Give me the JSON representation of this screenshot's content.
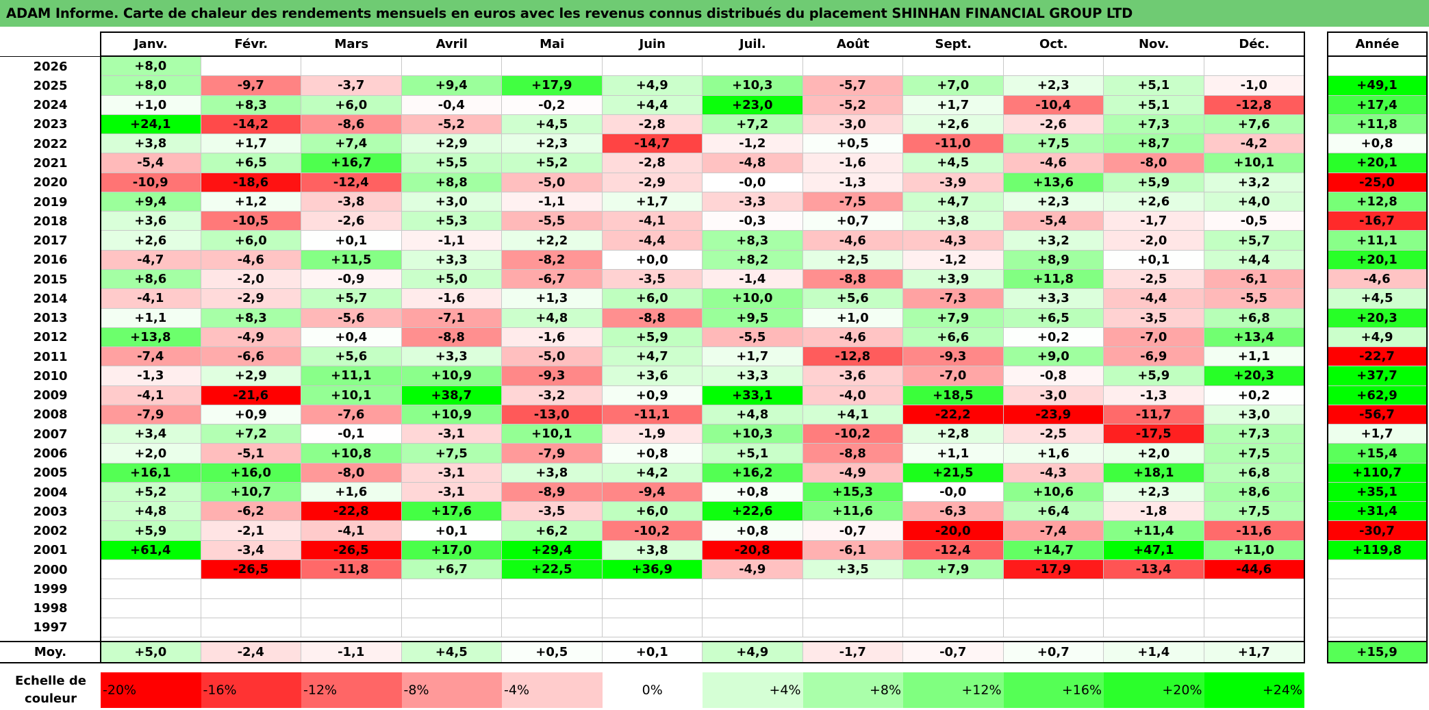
{
  "title": "ADAM Informe. Carte de chaleur des rendements mensuels en euros avec les revenus connus distribués du placement SHINHAN FINANCIAL GROUP LTD",
  "year_header": "",
  "annual_header": "Année",
  "average_label": "Moy.",
  "scale_label": "Echelle de couleur",
  "colors": {
    "positive": "#00ff00",
    "negative": "#ff0000",
    "neutral": "#ffffff",
    "title_bar": "#6fcb73"
  },
  "chart_data": {
    "type": "heatmap",
    "months": [
      "Janv.",
      "Févr.",
      "Mars",
      "Avril",
      "Mai",
      "Juin",
      "Juil.",
      "Août",
      "Sept.",
      "Oct.",
      "Nov.",
      "Déc."
    ],
    "rows": [
      {
        "year": "2026",
        "values": [
          "+8,0",
          "",
          "",
          "",
          "",
          "",
          "",
          "",
          "",
          "",
          "",
          ""
        ],
        "annual": ""
      },
      {
        "year": "2025",
        "values": [
          "+8,0",
          "-9,7",
          "-3,7",
          "+9,4",
          "+17,9",
          "+4,9",
          "+10,3",
          "-5,7",
          "+7,0",
          "+2,3",
          "+5,1",
          "-1,0"
        ],
        "annual": "+49,1"
      },
      {
        "year": "2024",
        "values": [
          "+1,0",
          "+8,3",
          "+6,0",
          "-0,4",
          "-0,2",
          "+4,4",
          "+23,0",
          "-5,2",
          "+1,7",
          "-10,4",
          "+5,1",
          "-12,8"
        ],
        "annual": "+17,4"
      },
      {
        "year": "2023",
        "values": [
          "+24,1",
          "-14,2",
          "-8,6",
          "-5,2",
          "+4,5",
          "-2,8",
          "+7,2",
          "-3,0",
          "+2,6",
          "-2,6",
          "+7,3",
          "+7,6"
        ],
        "annual": "+11,8"
      },
      {
        "year": "2022",
        "values": [
          "+3,8",
          "+1,7",
          "+7,4",
          "+2,9",
          "+2,3",
          "-14,7",
          "-1,2",
          "+0,5",
          "-11,0",
          "+7,5",
          "+8,7",
          "-4,2"
        ],
        "annual": "+0,8"
      },
      {
        "year": "2021",
        "values": [
          "-5,4",
          "+6,5",
          "+16,7",
          "+5,5",
          "+5,2",
          "-2,8",
          "-4,8",
          "-1,6",
          "+4,5",
          "-4,6",
          "-8,0",
          "+10,1"
        ],
        "annual": "+20,1"
      },
      {
        "year": "2020",
        "values": [
          "-10,9",
          "-18,6",
          "-12,4",
          "+8,8",
          "-5,0",
          "-2,9",
          "-0,0",
          "-1,3",
          "-3,9",
          "+13,6",
          "+5,9",
          "+3,2"
        ],
        "annual": "-25,0"
      },
      {
        "year": "2019",
        "values": [
          "+9,4",
          "+1,2",
          "-3,8",
          "+3,0",
          "-1,1",
          "+1,7",
          "-3,3",
          "-7,5",
          "+4,7",
          "+2,3",
          "+2,6",
          "+4,0"
        ],
        "annual": "+12,8"
      },
      {
        "year": "2018",
        "values": [
          "+3,6",
          "-10,5",
          "-2,6",
          "+5,3",
          "-5,5",
          "-4,1",
          "-0,3",
          "+0,7",
          "+3,8",
          "-5,4",
          "-1,7",
          "-0,5"
        ],
        "annual": "-16,7"
      },
      {
        "year": "2017",
        "values": [
          "+2,6",
          "+6,0",
          "+0,1",
          "-1,1",
          "+2,2",
          "-4,4",
          "+8,3",
          "-4,6",
          "-4,3",
          "+3,2",
          "-2,0",
          "+5,7"
        ],
        "annual": "+11,1"
      },
      {
        "year": "2016",
        "values": [
          "-4,7",
          "-4,6",
          "+11,5",
          "+3,3",
          "-8,2",
          "+0,0",
          "+8,2",
          "+2,5",
          "-1,2",
          "+8,9",
          "+0,1",
          "+4,4"
        ],
        "annual": "+20,1"
      },
      {
        "year": "2015",
        "values": [
          "+8,6",
          "-2,0",
          "-0,9",
          "+5,0",
          "-6,7",
          "-3,5",
          "-1,4",
          "-8,8",
          "+3,9",
          "+11,8",
          "-2,5",
          "-6,1"
        ],
        "annual": "-4,6"
      },
      {
        "year": "2014",
        "values": [
          "-4,1",
          "-2,9",
          "+5,7",
          "-1,6",
          "+1,3",
          "+6,0",
          "+10,0",
          "+5,6",
          "-7,3",
          "+3,3",
          "-4,4",
          "-5,5"
        ],
        "annual": "+4,5"
      },
      {
        "year": "2013",
        "values": [
          "+1,1",
          "+8,3",
          "-5,6",
          "-7,1",
          "+4,8",
          "-8,8",
          "+9,5",
          "+1,0",
          "+7,9",
          "+6,5",
          "-3,5",
          "+6,8"
        ],
        "annual": "+20,3"
      },
      {
        "year": "2012",
        "values": [
          "+13,8",
          "-4,9",
          "+0,4",
          "-8,8",
          "-1,6",
          "+5,9",
          "-5,5",
          "-4,6",
          "+6,6",
          "+0,2",
          "-7,0",
          "+13,4"
        ],
        "annual": "+4,9"
      },
      {
        "year": "2011",
        "values": [
          "-7,4",
          "-6,6",
          "+5,6",
          "+3,3",
          "-5,0",
          "+4,7",
          "+1,7",
          "-12,8",
          "-9,3",
          "+9,0",
          "-6,9",
          "+1,1"
        ],
        "annual": "-22,7"
      },
      {
        "year": "2010",
        "values": [
          "-1,3",
          "+2,9",
          "+11,1",
          "+10,9",
          "-9,3",
          "+3,6",
          "+3,3",
          "-3,6",
          "-7,0",
          "-0,8",
          "+5,9",
          "+20,3"
        ],
        "annual": "+37,7"
      },
      {
        "year": "2009",
        "values": [
          "-4,1",
          "-21,6",
          "+10,1",
          "+38,7",
          "-3,2",
          "+0,9",
          "+33,1",
          "-4,0",
          "+18,5",
          "-3,0",
          "-1,3",
          "+0,2"
        ],
        "annual": "+62,9"
      },
      {
        "year": "2008",
        "values": [
          "-7,9",
          "+0,9",
          "-7,6",
          "+10,9",
          "-13,0",
          "-11,1",
          "+4,8",
          "+4,1",
          "-22,2",
          "-23,9",
          "-11,7",
          "+3,0"
        ],
        "annual": "-56,7"
      },
      {
        "year": "2007",
        "values": [
          "+3,4",
          "+7,2",
          "-0,1",
          "-3,1",
          "+10,1",
          "-1,9",
          "+10,3",
          "-10,2",
          "+2,8",
          "-2,5",
          "-17,5",
          "+7,3"
        ],
        "annual": "+1,7"
      },
      {
        "year": "2006",
        "values": [
          "+2,0",
          "-5,1",
          "+10,8",
          "+7,5",
          "-7,9",
          "+0,8",
          "+5,1",
          "-8,8",
          "+1,1",
          "+1,6",
          "+2,0",
          "+7,5"
        ],
        "annual": "+15,4"
      },
      {
        "year": "2005",
        "values": [
          "+16,1",
          "+16,0",
          "-8,0",
          "-3,1",
          "+3,8",
          "+4,2",
          "+16,2",
          "-4,9",
          "+21,5",
          "-4,3",
          "+18,1",
          "+6,8"
        ],
        "annual": "+110,7"
      },
      {
        "year": "2004",
        "values": [
          "+5,2",
          "+10,7",
          "+1,6",
          "-3,1",
          "-8,9",
          "-9,4",
          "+0,8",
          "+15,3",
          "-0,0",
          "+10,6",
          "+2,3",
          "+8,6"
        ],
        "annual": "+35,1"
      },
      {
        "year": "2003",
        "values": [
          "+4,8",
          "-6,2",
          "-22,8",
          "+17,6",
          "-3,5",
          "+6,0",
          "+22,6",
          "+11,6",
          "-6,3",
          "+6,4",
          "-1,8",
          "+7,5"
        ],
        "annual": "+31,4"
      },
      {
        "year": "2002",
        "values": [
          "+5,9",
          "-2,1",
          "-4,1",
          "+0,1",
          "+6,2",
          "-10,2",
          "+0,8",
          "-0,7",
          "-20,0",
          "-7,4",
          "+11,4",
          "-11,6"
        ],
        "annual": "-30,7"
      },
      {
        "year": "2001",
        "values": [
          "+61,4",
          "-3,4",
          "-26,5",
          "+17,0",
          "+29,4",
          "+3,8",
          "-20,8",
          "-6,1",
          "-12,4",
          "+14,7",
          "+47,1",
          "+11,0"
        ],
        "annual": "+119,8"
      },
      {
        "year": "2000",
        "values": [
          "",
          "-26,5",
          "-11,8",
          "+6,7",
          "+22,5",
          "+36,9",
          "-4,9",
          "+3,5",
          "+7,9",
          "-17,9",
          "-13,4",
          "-44,6"
        ],
        "annual": ""
      },
      {
        "year": "1999",
        "values": [
          "",
          "",
          "",
          "",
          "",
          "",
          "",
          "",
          "",
          "",
          "",
          ""
        ],
        "annual": ""
      },
      {
        "year": "1998",
        "values": [
          "",
          "",
          "",
          "",
          "",
          "",
          "",
          "",
          "",
          "",
          "",
          ""
        ],
        "annual": ""
      },
      {
        "year": "1997",
        "values": [
          "",
          "",
          "",
          "",
          "",
          "",
          "",
          "",
          "",
          "",
          "",
          ""
        ],
        "annual": ""
      }
    ],
    "averages": [
      "+5,0",
      "-2,4",
      "-1,1",
      "+4,5",
      "+0,5",
      "+0,1",
      "+4,9",
      "-1,7",
      "-0,7",
      "+0,7",
      "+1,4",
      "+1,7"
    ],
    "average_annual": "+15,9",
    "color_scale": [
      {
        "label": "-20%",
        "value": -20
      },
      {
        "label": "-16%",
        "value": -16
      },
      {
        "label": "-12%",
        "value": -12
      },
      {
        "label": "-8%",
        "value": -8
      },
      {
        "label": "-4%",
        "value": -4
      },
      {
        "label": "0%",
        "value": 0
      },
      {
        "label": "+4%",
        "value": 4
      },
      {
        "label": "+8%",
        "value": 8
      },
      {
        "label": "+12%",
        "value": 12
      },
      {
        "label": "+16%",
        "value": 16
      },
      {
        "label": "+20%",
        "value": 20
      },
      {
        "label": "+24%",
        "value": 24
      }
    ]
  }
}
